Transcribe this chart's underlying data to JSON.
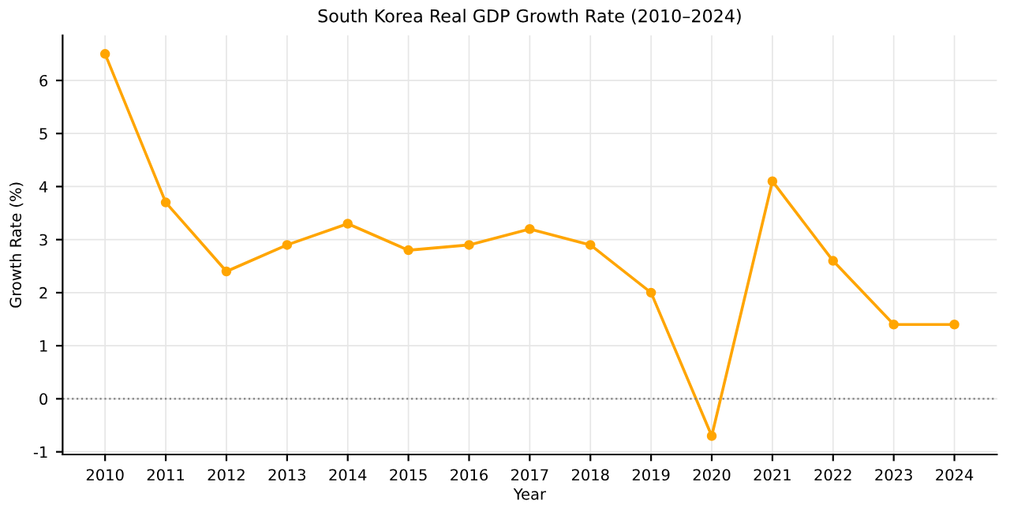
{
  "chart_data": {
    "type": "line",
    "title": "South Korea Real GDP Growth Rate (2010–2024)",
    "xlabel": "Year",
    "ylabel": "Growth Rate (%)",
    "x": [
      2010,
      2011,
      2012,
      2013,
      2014,
      2015,
      2016,
      2017,
      2018,
      2019,
      2020,
      2021,
      2022,
      2023,
      2024
    ],
    "series": [
      {
        "color": "#ffa500",
        "values": [
          6.5,
          3.7,
          2.4,
          2.9,
          3.3,
          2.8,
          2.9,
          3.2,
          2.9,
          2.0,
          -0.7,
          4.1,
          2.6,
          1.4,
          1.4
        ]
      }
    ],
    "xlim": [
      2009.3,
      2024.7
    ],
    "xticks": [
      2010,
      2011,
      2012,
      2013,
      2014,
      2015,
      2016,
      2017,
      2018,
      2019,
      2020,
      2021,
      2022,
      2023,
      2024
    ],
    "ylim": [
      -1.05,
      6.85
    ],
    "yticks": [
      -1,
      0,
      1,
      2,
      3,
      4,
      5,
      6
    ],
    "ref_lines": [
      {
        "axis": "y",
        "value": 0,
        "color": "#808080",
        "line_style": "dotted"
      }
    ],
    "grid": true,
    "marker": "circle",
    "line_style": "solid"
  }
}
